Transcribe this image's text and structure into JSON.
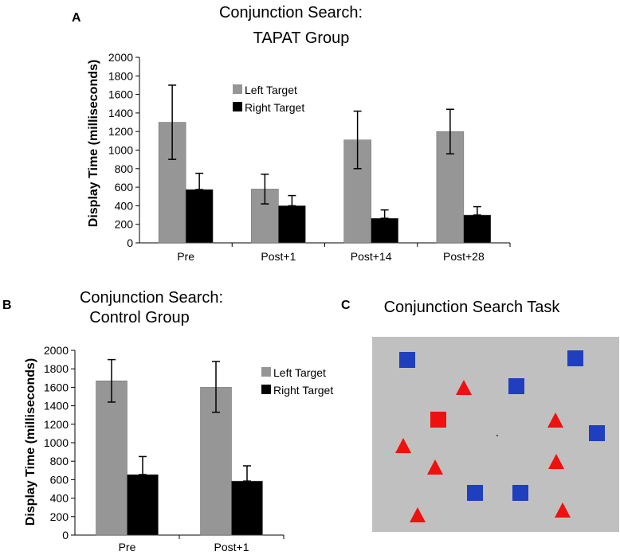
{
  "panel_letters": {
    "a": "A",
    "b": "B",
    "c": "C"
  },
  "colors": {
    "left": "#969696",
    "right": "#000000",
    "task_bg": "#c0c0c0",
    "square": "#1f3fbf",
    "triangle": "#ef1010",
    "red_square": "#ef1010"
  },
  "chart_data": [
    {
      "type": "bar",
      "title": [
        "Conjunction Search:",
        "TAPAT Group"
      ],
      "ylabel": "Display Time (milliseconds)",
      "xlabel": "",
      "ylim": [
        0,
        2000
      ],
      "yticks": [
        0,
        200,
        400,
        600,
        800,
        1000,
        1200,
        1400,
        1600,
        1800,
        2000
      ],
      "categories": [
        "Pre",
        "Post+1",
        "Post+14",
        "Post+28"
      ],
      "legend": [
        "Left Target",
        "Right Target"
      ],
      "legend_position": "top-center",
      "series": [
        {
          "name": "Left Target",
          "values": [
            1300,
            580,
            1110,
            1200
          ],
          "err_low": [
            900,
            420,
            800,
            960
          ],
          "err_high": [
            1700,
            740,
            1420,
            1440
          ]
        },
        {
          "name": "Right Target",
          "values": [
            575,
            400,
            265,
            300
          ],
          "err_low": [
            575,
            400,
            265,
            300
          ],
          "err_high": [
            750,
            510,
            355,
            390
          ]
        }
      ]
    },
    {
      "type": "bar",
      "title": [
        "Conjunction Search:",
        "Control Group"
      ],
      "ylabel": "Display Time (milliseconds)",
      "xlabel": "",
      "ylim": [
        0,
        2000
      ],
      "yticks": [
        0,
        200,
        400,
        600,
        800,
        1000,
        1200,
        1400,
        1600,
        1800,
        2000
      ],
      "categories": [
        "Pre",
        "Post+1"
      ],
      "legend": [
        "Left Target",
        "Right Target"
      ],
      "legend_position": "top-right",
      "series": [
        {
          "name": "Left Target",
          "values": [
            1670,
            1600
          ],
          "err_low": [
            1440,
            1330
          ],
          "err_high": [
            1900,
            1880
          ]
        },
        {
          "name": "Right Target",
          "values": [
            655,
            585
          ],
          "err_low": [
            655,
            585
          ],
          "err_high": [
            850,
            750
          ]
        }
      ]
    }
  ],
  "task_panel": {
    "title": "Conjunction Search Task",
    "shapes": [
      {
        "shape": "square",
        "color": "blue"
      },
      {
        "shape": "square",
        "color": "blue"
      },
      {
        "shape": "square",
        "color": "blue"
      },
      {
        "shape": "square",
        "color": "blue"
      },
      {
        "shape": "square",
        "color": "blue"
      },
      {
        "shape": "square",
        "color": "blue"
      },
      {
        "shape": "square",
        "color": "red"
      },
      {
        "shape": "triangle",
        "color": "red"
      },
      {
        "shape": "triangle",
        "color": "red"
      },
      {
        "shape": "triangle",
        "color": "red"
      },
      {
        "shape": "triangle",
        "color": "red"
      },
      {
        "shape": "triangle",
        "color": "red"
      },
      {
        "shape": "triangle",
        "color": "red"
      },
      {
        "shape": "triangle",
        "color": "red"
      }
    ]
  }
}
